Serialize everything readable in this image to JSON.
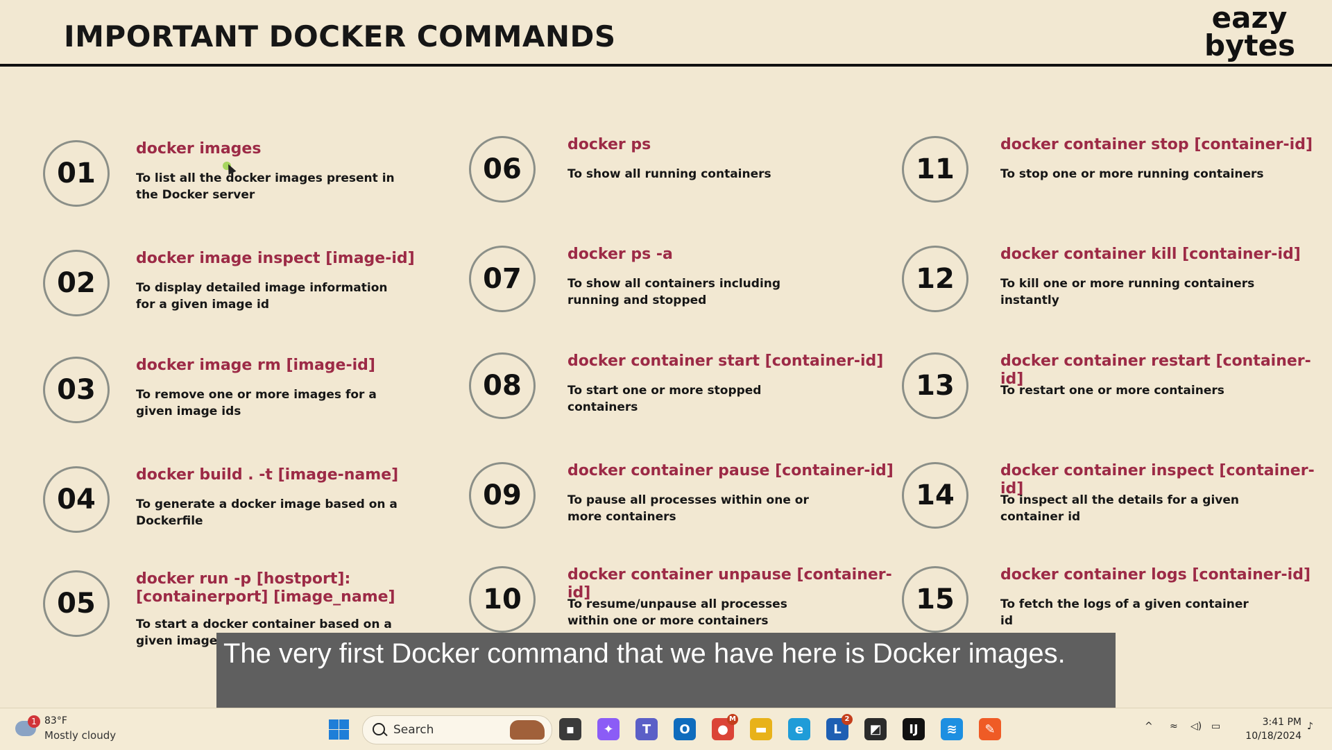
{
  "slide": {
    "title": "IMPORTANT DOCKER COMMANDS",
    "logo": [
      "eazy",
      "bytes"
    ],
    "commands": [
      {
        "num": "01",
        "cmd": "docker images",
        "desc": "To list all the docker images present in the Docker server"
      },
      {
        "num": "02",
        "cmd": "docker image inspect [image-id]",
        "desc": "To display detailed image information for a given image id"
      },
      {
        "num": "03",
        "cmd": "docker image rm [image-id]",
        "desc": "To remove one or more images for a given image ids"
      },
      {
        "num": "04",
        "cmd": "docker build . -t [image-name]",
        "desc": "To generate a docker image based on a Dockerfile"
      },
      {
        "num": "05",
        "cmd": "docker run -p [hostport]:[containerport] [image_name]",
        "desc": "To start a docker container based on a given image"
      },
      {
        "num": "06",
        "cmd": "docker ps",
        "desc": "To show all running containers"
      },
      {
        "num": "07",
        "cmd": "docker ps -a",
        "desc": "To show all containers including running and stopped"
      },
      {
        "num": "08",
        "cmd": "docker container start [container-id]",
        "desc": "To start one or more stopped containers"
      },
      {
        "num": "09",
        "cmd": "docker container pause [container-id]",
        "desc": "To pause all processes within one or more containers"
      },
      {
        "num": "10",
        "cmd": "docker container unpause [container-id]",
        "desc": "To resume/unpause all processes within one or more containers"
      },
      {
        "num": "11",
        "cmd": "docker container stop [container-id]",
        "desc": "To stop one or more running containers"
      },
      {
        "num": "12",
        "cmd": "docker container kill [container-id]",
        "desc": "To kill one or more running containers instantly"
      },
      {
        "num": "13",
        "cmd": "docker container restart [container-id]",
        "desc": "To restart one or more containers"
      },
      {
        "num": "14",
        "cmd": "docker container inspect [container-id]",
        "desc": "To inspect all the details for a given container id"
      },
      {
        "num": "15",
        "cmd": "docker container logs [container-id]",
        "desc": "To fetch the logs of a given container id"
      }
    ]
  },
  "caption": "The very first Docker command that we have here is Docker images.",
  "taskbar": {
    "weather": {
      "badge": "1",
      "temp": "83°F",
      "desc": "Mostly cloudy",
      "icon": "cloud-icon"
    },
    "search_placeholder": "Search",
    "apps": [
      {
        "name": "task-view-icon",
        "color": "#3a3a3a",
        "glyph": "▪"
      },
      {
        "name": "copilot-icon",
        "color": "#8b5cf6",
        "glyph": "✦"
      },
      {
        "name": "teams-icon",
        "color": "#5b5fc7",
        "glyph": "T"
      },
      {
        "name": "outlook-icon",
        "color": "#0f6cbd",
        "glyph": "O"
      },
      {
        "name": "chrome-icon",
        "color": "#db4437",
        "glyph": "●",
        "badge": "M"
      },
      {
        "name": "file-explorer-icon",
        "color": "#e8b21a",
        "glyph": "▬"
      },
      {
        "name": "edge-icon",
        "color": "#1f9cd8",
        "glyph": "e"
      },
      {
        "name": "lens-icon",
        "color": "#1e5fb3",
        "glyph": "L",
        "badge": "2"
      },
      {
        "name": "sticky-notes-icon",
        "color": "#2b2b2b",
        "glyph": "◩"
      },
      {
        "name": "intellij-icon",
        "color": "#111111",
        "glyph": "IJ"
      },
      {
        "name": "docker-icon",
        "color": "#1d8fe1",
        "glyph": "≋"
      },
      {
        "name": "postman-icon",
        "color": "#ef5b25",
        "glyph": "✎"
      }
    ],
    "clock": {
      "time": "3:41 PM",
      "date": "10/18/2024"
    }
  }
}
